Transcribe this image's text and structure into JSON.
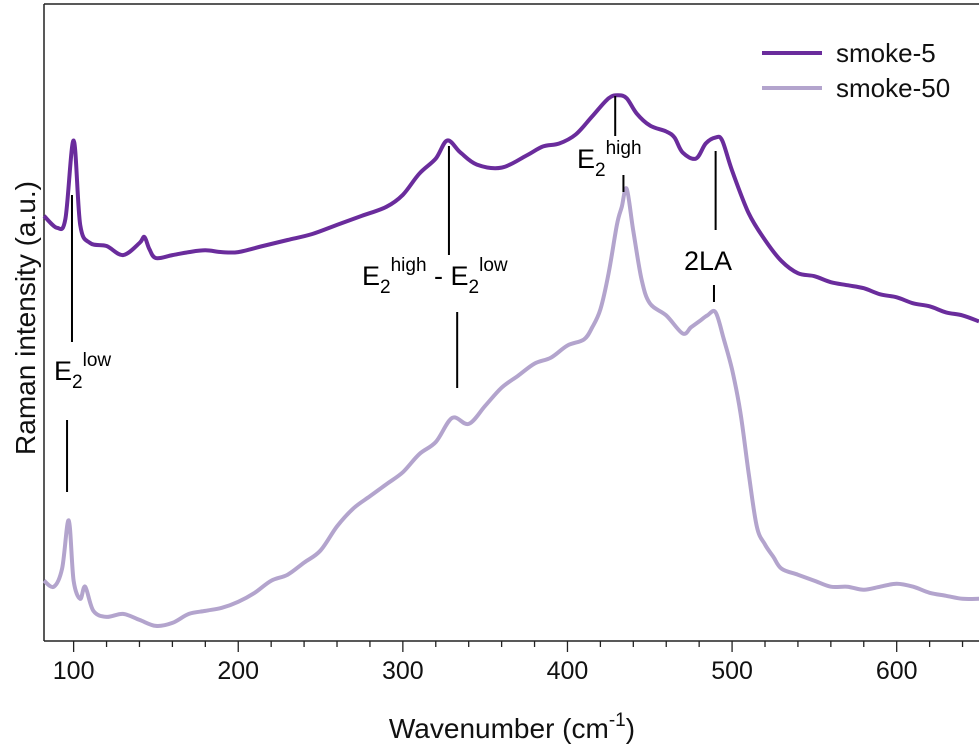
{
  "chart_data": {
    "type": "line",
    "title": "",
    "xlabel": "Wavenumber (cm",
    "xlabel_sup": "-1",
    "xlabel_close": ")",
    "ylabel": "Raman intensity (a.u.)",
    "xlim": [
      82,
      650
    ],
    "ylim": [
      0,
      1
    ],
    "y_ticks_labeled": false,
    "x_ticks": [
      100,
      200,
      300,
      400,
      500,
      600
    ],
    "x_tick_labels": [
      "100",
      "200",
      "300",
      "400",
      "500",
      "600"
    ],
    "grid": false,
    "legend_position": "top-right",
    "series": [
      {
        "name": "smoke-5",
        "color": "#6a2c9c",
        "x": [
          82,
          90,
          95,
          100,
          104,
          110,
          120,
          130,
          140,
          143,
          146,
          150,
          160,
          170,
          180,
          190,
          200,
          215,
          230,
          245,
          260,
          275,
          290,
          300,
          310,
          320,
          327,
          335,
          345,
          360,
          375,
          385,
          395,
          405,
          415,
          425,
          431,
          436,
          442,
          450,
          460,
          465,
          470,
          478,
          484,
          490,
          494,
          500,
          510,
          520,
          530,
          540,
          550,
          560,
          570,
          580,
          590,
          600,
          610,
          620,
          630,
          640,
          650
        ],
        "y": [
          0.705,
          0.685,
          0.7,
          0.83,
          0.69,
          0.66,
          0.655,
          0.64,
          0.66,
          0.67,
          0.65,
          0.635,
          0.64,
          0.645,
          0.648,
          0.645,
          0.645,
          0.655,
          0.665,
          0.675,
          0.69,
          0.705,
          0.72,
          0.74,
          0.775,
          0.8,
          0.83,
          0.81,
          0.79,
          0.785,
          0.805,
          0.82,
          0.825,
          0.84,
          0.87,
          0.9,
          0.905,
          0.9,
          0.875,
          0.855,
          0.845,
          0.835,
          0.81,
          0.8,
          0.825,
          0.835,
          0.83,
          0.78,
          0.71,
          0.665,
          0.63,
          0.61,
          0.605,
          0.595,
          0.59,
          0.585,
          0.575,
          0.57,
          0.56,
          0.555,
          0.545,
          0.54,
          0.53
        ]
      },
      {
        "name": "smoke-50",
        "color": "#b3a4cd",
        "x": [
          82,
          88,
          93,
          97,
          100,
          104,
          107,
          112,
          120,
          130,
          140,
          150,
          160,
          170,
          180,
          190,
          200,
          210,
          220,
          230,
          240,
          250,
          260,
          270,
          280,
          290,
          300,
          310,
          320,
          330,
          340,
          350,
          360,
          370,
          380,
          390,
          400,
          410,
          415,
          420,
          425,
          430,
          433,
          436,
          440,
          445,
          450,
          460,
          470,
          475,
          480,
          485,
          490,
          495,
          500,
          505,
          510,
          515,
          520,
          525,
          530,
          540,
          550,
          560,
          570,
          580,
          590,
          600,
          610,
          620,
          630,
          640,
          650
        ],
        "y": [
          0.1,
          0.09,
          0.12,
          0.2,
          0.1,
          0.07,
          0.09,
          0.05,
          0.04,
          0.045,
          0.035,
          0.025,
          0.03,
          0.045,
          0.05,
          0.055,
          0.065,
          0.08,
          0.1,
          0.11,
          0.13,
          0.15,
          0.19,
          0.22,
          0.24,
          0.26,
          0.28,
          0.31,
          0.33,
          0.37,
          0.36,
          0.39,
          0.42,
          0.44,
          0.46,
          0.47,
          0.49,
          0.5,
          0.52,
          0.55,
          0.61,
          0.69,
          0.72,
          0.75,
          0.68,
          0.6,
          0.56,
          0.54,
          0.51,
          0.52,
          0.53,
          0.54,
          0.545,
          0.5,
          0.45,
          0.38,
          0.28,
          0.19,
          0.16,
          0.14,
          0.12,
          0.11,
          0.1,
          0.09,
          0.09,
          0.085,
          0.09,
          0.095,
          0.09,
          0.08,
          0.075,
          0.07,
          0.07
        ]
      }
    ],
    "annotations": {
      "e2low": {
        "base": "E",
        "sub": "2",
        "sup": "low",
        "x": 97
      },
      "diff": {
        "base1": "E",
        "sub1": "2",
        "sup1": "high",
        "minus": " - ",
        "base2": "E",
        "sub2": "2",
        "sup2": "low",
        "x": 328
      },
      "e2high": {
        "base": "E",
        "sub": "2",
        "sup": "high",
        "x": 434
      },
      "la2": {
        "text": "2LA",
        "x": 490
      }
    }
  }
}
